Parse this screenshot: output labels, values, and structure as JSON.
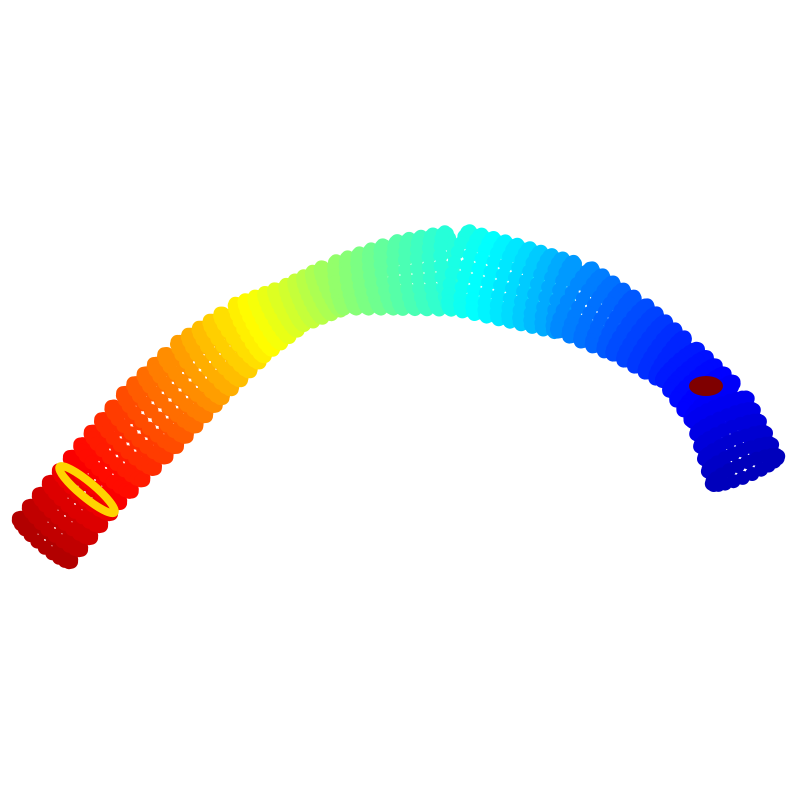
{
  "figure": {
    "type": "3d-point-cloud",
    "background": "#ffffff",
    "colormap": "jet",
    "colormap_stops": [
      "#00007f",
      "#0000ff",
      "#007fff",
      "#00ffff",
      "#7fff7f",
      "#ffff00",
      "#ff7f00",
      "#ff0000",
      "#7f0000"
    ],
    "ring_edge_color": "#1a1a1a",
    "marker_shape": "circle",
    "axes_visible": false,
    "annotations": [
      {
        "kind": "band",
        "segment": "lower-left",
        "color": "#ffd400"
      },
      {
        "kind": "band",
        "segment": "right-end",
        "color": "#7f0000"
      }
    ],
    "description_segments": [
      {
        "name": "left-end",
        "color_value": 0.92
      },
      {
        "name": "lower-left-body",
        "color_value": 0.8
      },
      {
        "name": "mid-left-body",
        "color_value": 0.62
      },
      {
        "name": "center-bump",
        "color_value": 0.45
      },
      {
        "name": "mid-right-body",
        "color_value": 0.3
      },
      {
        "name": "right-body",
        "color_value": 0.18
      },
      {
        "name": "right-end",
        "color_value": 0.08
      }
    ]
  }
}
